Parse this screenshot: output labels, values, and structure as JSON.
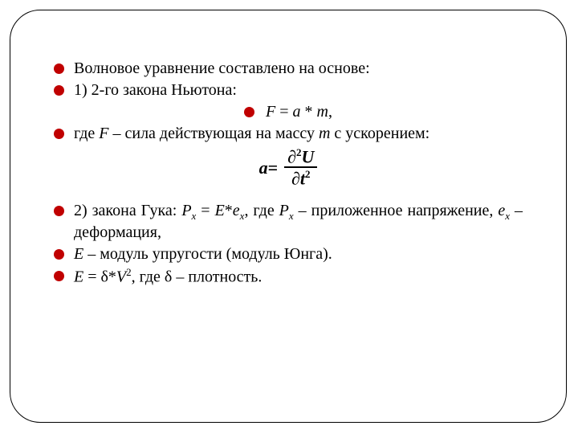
{
  "bullet_color": "#c00000",
  "text_color": "#000000",
  "lines": {
    "l1": "Волновое уравнение составлено на основе:",
    "l2": "1) 2-го закона Ньютона:",
    "eq1_F": "F",
    "eq1_eq": " = ",
    "eq1_a": "a",
    "eq1_mul": " * ",
    "eq1_m": "m",
    "eq1_comma": ",",
    "l3a": "где ",
    "l3F": "F",
    "l3b": " – сила действующая на массу ",
    "l3m": "m",
    "l3c": " с ускорением:",
    "formula_a": "a",
    "formula_eq": " = ",
    "formula_d1": "∂",
    "formula_U": "U",
    "formula_d2": "∂",
    "formula_t": "t",
    "formula_sq": "2",
    "l4a": "2) закона Гука: ",
    "l4P1": "P",
    "l4x1": "x",
    "l4b": " = ",
    "l4E": "E",
    "l4c": "*",
    "l4e1": "e",
    "l4x2": "x",
    "l4d": ", где ",
    "l4P2": "P",
    "l4x3": "x",
    "l4e": " – приложенное напряжение, ",
    "l4e2": "e",
    "l4x4": "x",
    "l4f": " – деформация,",
    "l5a": "E",
    "l5b": " – модуль упругости (модуль Юнга).",
    "l6a": "E",
    "l6b": " = δ*",
    "l6V": "V",
    "l6sq": "2",
    "l6c": ", где δ – плотность."
  }
}
